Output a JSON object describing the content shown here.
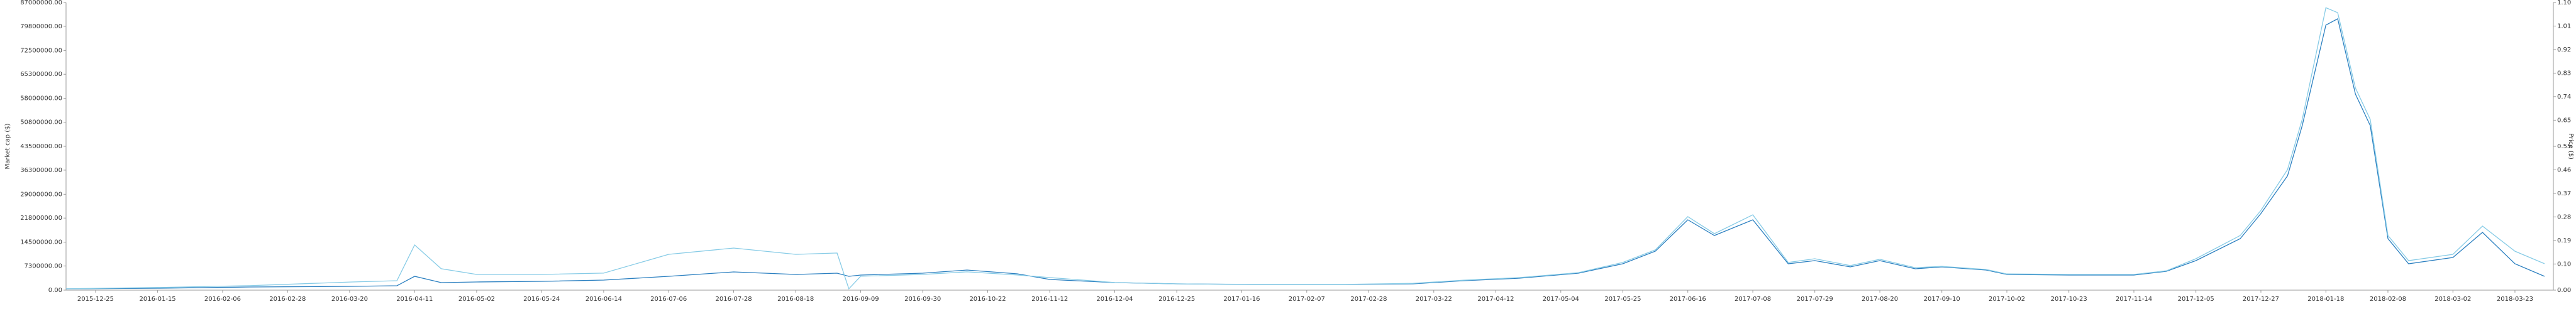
{
  "chart_data": {
    "type": "line",
    "ylabel": "Market cap ($)",
    "y2label": "Price ($)",
    "xlim": [
      "2015-12-15",
      "2018-04-05"
    ],
    "xticks": [
      "2015-12-25",
      "2016-01-15",
      "2016-02-06",
      "2016-02-28",
      "2016-03-20",
      "2016-04-11",
      "2016-05-02",
      "2016-05-24",
      "2016-06-14",
      "2016-07-06",
      "2016-07-28",
      "2016-08-18",
      "2016-09-09",
      "2016-09-30",
      "2016-10-22",
      "2016-11-12",
      "2016-12-04",
      "2016-12-25",
      "2017-01-16",
      "2017-02-07",
      "2017-02-28",
      "2017-03-22",
      "2017-04-12",
      "2017-05-04",
      "2017-05-25",
      "2017-06-16",
      "2017-07-08",
      "2017-07-29",
      "2017-08-20",
      "2017-09-10",
      "2017-10-02",
      "2017-10-23",
      "2017-11-14",
      "2017-12-05",
      "2017-12-27",
      "2018-01-18",
      "2018-02-08",
      "2018-03-02",
      "2018-03-23"
    ],
    "ylim": [
      0,
      87000000
    ],
    "yticks": [
      {
        "value": 0,
        "label": "0.00"
      },
      {
        "value": 7300000,
        "label": "7300000.00"
      },
      {
        "value": 14500000,
        "label": "14500000.00"
      },
      {
        "value": 21800000,
        "label": "21800000.00"
      },
      {
        "value": 29000000,
        "label": "29000000.00"
      },
      {
        "value": 36300000,
        "label": "36300000.00"
      },
      {
        "value": 43500000,
        "label": "43500000.00"
      },
      {
        "value": 50800000,
        "label": "50800000.00"
      },
      {
        "value": 58000000,
        "label": "58000000.00"
      },
      {
        "value": 65300000,
        "label": "65300000.00"
      },
      {
        "value": 72500000,
        "label": "72500000.00"
      },
      {
        "value": 79800000,
        "label": "79800000.00"
      },
      {
        "value": 87000000,
        "label": "87000000.00"
      }
    ],
    "y2lim": [
      0,
      1.1
    ],
    "y2ticks": [
      {
        "value": 0,
        "label": "0.00"
      },
      {
        "value": 0.1,
        "label": "0.10"
      },
      0.19,
      0.28,
      0.37,
      0.46,
      0.55,
      0.65,
      0.74,
      0.83,
      0.92,
      1.01,
      {
        "value": 1.1,
        "label": "1.10"
      }
    ],
    "x": [
      "2015-12-15",
      "2016-01-15",
      "2016-02-15",
      "2016-03-20",
      "2016-04-05",
      "2016-04-11",
      "2016-04-20",
      "2016-05-02",
      "2016-05-24",
      "2016-06-14",
      "2016-07-06",
      "2016-07-28",
      "2016-08-18",
      "2016-09-01",
      "2016-09-05",
      "2016-09-09",
      "2016-09-30",
      "2016-10-15",
      "2016-11-01",
      "2016-11-12",
      "2016-12-04",
      "2016-12-25",
      "2017-01-20",
      "2017-02-20",
      "2017-03-15",
      "2017-04-01",
      "2017-04-20",
      "2017-05-10",
      "2017-05-25",
      "2017-06-05",
      "2017-06-16",
      "2017-06-25",
      "2017-07-08",
      "2017-07-20",
      "2017-07-29",
      "2017-08-10",
      "2017-08-20",
      "2017-09-01",
      "2017-09-10",
      "2017-09-25",
      "2017-10-02",
      "2017-10-23",
      "2017-11-14",
      "2017-11-25",
      "2017-12-05",
      "2017-12-20",
      "2017-12-27",
      "2018-01-05",
      "2018-01-10",
      "2018-01-18",
      "2018-01-22",
      "2018-01-28",
      "2018-02-02",
      "2018-02-08",
      "2018-02-15",
      "2018-03-02",
      "2018-03-12",
      "2018-03-23",
      "2018-04-02"
    ],
    "series": [
      {
        "color": "#2a7fc0",
        "values": [
          380000,
          570000,
          950000,
          1140000,
          1330000,
          4180000,
          2280000,
          2470000,
          2660000,
          3040000,
          4180000,
          5510000,
          4750000,
          5130000,
          4180000,
          4560000,
          5130000,
          6080000,
          4940000,
          3230000,
          2280000,
          1900000,
          1710000,
          1710000,
          1900000,
          2850000,
          3610000,
          5130000,
          7980000,
          11780000,
          21280000,
          16530000,
          21280000,
          7980000,
          8930000,
          7030000,
          8930000,
          6460000,
          7030000,
          6080000,
          4750000,
          4560000,
          4560000,
          5700000,
          8930000,
          15580000,
          23180000,
          34580000,
          49780000,
          80180000,
          82080000,
          59280000,
          49780000,
          15580000,
          7980000,
          9880000,
          17480000,
          7980000,
          4180000
        ]
      },
      {
        "color": "#86cbe6",
        "axis": "y2",
        "values": [
          0.005,
          0.01,
          0.017,
          0.031,
          0.036,
          0.173,
          0.082,
          0.06,
          0.06,
          0.065,
          0.137,
          0.161,
          0.137,
          0.142,
          0.005,
          0.053,
          0.06,
          0.07,
          0.058,
          0.048,
          0.029,
          0.024,
          0.022,
          0.022,
          0.026,
          0.038,
          0.048,
          0.067,
          0.106,
          0.154,
          0.281,
          0.216,
          0.288,
          0.106,
          0.12,
          0.094,
          0.118,
          0.086,
          0.091,
          0.079,
          0.062,
          0.06,
          0.06,
          0.074,
          0.12,
          0.209,
          0.305,
          0.461,
          0.653,
          1.08,
          1.061,
          0.773,
          0.653,
          0.209,
          0.113,
          0.137,
          0.245,
          0.149,
          0.101
        ]
      }
    ]
  }
}
